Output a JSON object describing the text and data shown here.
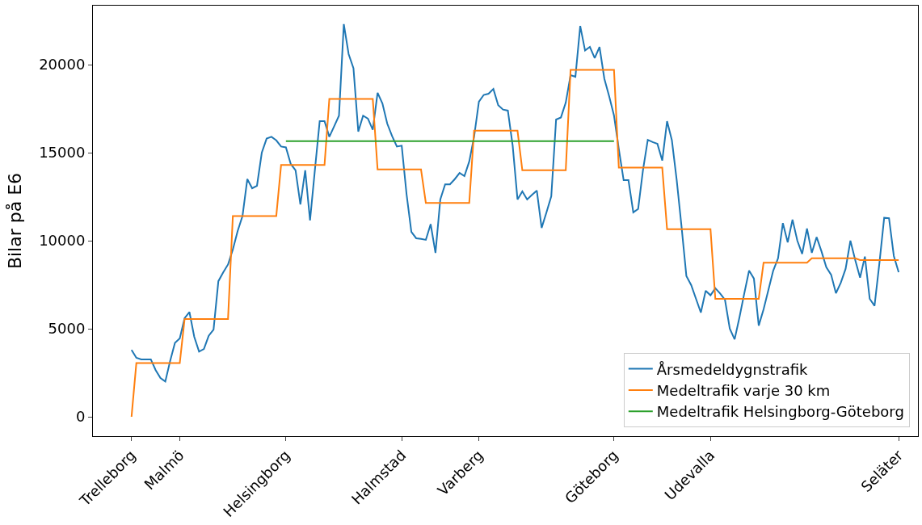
{
  "chart_data": {
    "type": "line",
    "ylabel": "Bilar på E6",
    "ylim": [
      -1100,
      23350
    ],
    "yticks": [
      0,
      5000,
      10000,
      15000,
      20000
    ],
    "categories": [
      "Trelleborg",
      null,
      null,
      null,
      null,
      null,
      null,
      null,
      null,
      null,
      "Malmö",
      null,
      null,
      null,
      null,
      null,
      null,
      null,
      null,
      null,
      null,
      null,
      null,
      null,
      null,
      null,
      null,
      null,
      null,
      null,
      null,
      null,
      "Helsingborg",
      null,
      null,
      null,
      null,
      null,
      null,
      null,
      null,
      null,
      null,
      null,
      null,
      null,
      null,
      null,
      null,
      null,
      null,
      null,
      null,
      null,
      null,
      null,
      "Halmstad",
      null,
      null,
      null,
      null,
      null,
      null,
      null,
      null,
      null,
      null,
      null,
      null,
      null,
      null,
      null,
      "Varberg",
      null,
      null,
      null,
      null,
      null,
      null,
      null,
      null,
      null,
      null,
      null,
      null,
      null,
      null,
      null,
      null,
      null,
      null,
      null,
      null,
      null,
      null,
      null,
      null,
      null,
      null,
      null,
      "Göteborg",
      null,
      null,
      null,
      null,
      null,
      null,
      null,
      null,
      null,
      null,
      null,
      null,
      null,
      null,
      null,
      null,
      null,
      null,
      null,
      "Udevalla",
      null,
      null,
      null,
      null,
      null,
      null,
      null,
      null,
      null,
      null,
      null,
      null,
      null,
      null,
      null,
      null,
      null,
      null,
      null,
      null,
      null,
      null,
      null,
      null,
      null,
      null,
      null,
      null,
      null,
      null,
      null,
      null,
      null,
      null,
      null,
      null,
      null,
      null,
      "Seläter"
    ],
    "legend": "bottom right",
    "series": [
      {
        "name": "Årsmedeldygnstrafik",
        "color": "#1f77b4",
        "values": [
          3800,
          3350,
          3260,
          3260,
          3260,
          2650,
          2200,
          2000,
          3170,
          4200,
          4450,
          5600,
          5950,
          4540,
          3700,
          3850,
          4600,
          4950,
          7700,
          8200,
          8650,
          9500,
          10550,
          11400,
          13500,
          12980,
          13120,
          15000,
          15800,
          15900,
          15700,
          15350,
          15300,
          14360,
          14000,
          12060,
          14000,
          11150,
          14000,
          16790,
          16790,
          15900,
          16500,
          17100,
          22300,
          20600,
          19800,
          16200,
          17100,
          16930,
          16300,
          18400,
          17800,
          16650,
          15950,
          15350,
          15400,
          12650,
          10500,
          10140,
          10100,
          10050,
          10940,
          9310,
          12340,
          13200,
          13200,
          13500,
          13850,
          13670,
          14500,
          15900,
          17900,
          18280,
          18350,
          18620,
          17700,
          17450,
          17390,
          15400,
          12340,
          12800,
          12340,
          12600,
          12850,
          10730,
          11610,
          12520,
          16880,
          17000,
          17840,
          19400,
          19310,
          22200,
          20800,
          21010,
          20370,
          21000,
          19200,
          18200,
          17110,
          15200,
          13440,
          13440,
          11610,
          11800,
          14000,
          15730,
          15600,
          15500,
          14550,
          16790,
          15700,
          13440,
          10800,
          8000,
          7480,
          6700,
          5920,
          7160,
          6900,
          7300,
          7000,
          6650,
          5000,
          4400,
          5640,
          7000,
          8300,
          7850,
          5180,
          6100,
          7200,
          8300,
          9000,
          11000,
          9910,
          11200,
          10000,
          9250,
          10690,
          9310,
          10200,
          9400,
          8500,
          8070,
          7020,
          7610,
          8400,
          10000,
          8900,
          7900,
          9100,
          6700,
          6300,
          8700,
          11300,
          11280,
          9130,
          8210
        ]
      },
      {
        "name": "Medeltrafik varje 30 km",
        "color": "#ff7f0e",
        "values": [
          0,
          3050,
          3050,
          3050,
          3050,
          3050,
          3050,
          3050,
          3050,
          3050,
          3050,
          5550,
          5550,
          5550,
          5550,
          5550,
          5550,
          5550,
          5550,
          5550,
          5550,
          11400,
          11400,
          11400,
          11400,
          11400,
          11400,
          11400,
          11400,
          11400,
          11400,
          14300,
          14300,
          14300,
          14300,
          14300,
          14300,
          14300,
          14300,
          14300,
          14300,
          18050,
          18050,
          18050,
          18050,
          18050,
          18050,
          18050,
          18050,
          18050,
          18050,
          14050,
          14050,
          14050,
          14050,
          14050,
          14050,
          14050,
          14050,
          14050,
          14050,
          12150,
          12150,
          12150,
          12150,
          12150,
          12150,
          12150,
          12150,
          12150,
          12150,
          16250,
          16250,
          16250,
          16250,
          16250,
          16250,
          16250,
          16250,
          16250,
          16250,
          14000,
          14000,
          14000,
          14000,
          14000,
          14000,
          14000,
          14000,
          14000,
          14000,
          19700,
          19700,
          19700,
          19700,
          19700,
          19700,
          19700,
          19700,
          19700,
          19700,
          14150,
          14150,
          14150,
          14150,
          14150,
          14150,
          14150,
          14150,
          14150,
          14150,
          10650,
          10650,
          10650,
          10650,
          10650,
          10650,
          10650,
          10650,
          10650,
          10650,
          6700,
          6700,
          6700,
          6700,
          6700,
          6700,
          6700,
          6700,
          6700,
          6700,
          8750,
          8750,
          8750,
          8750,
          8750,
          8750,
          8750,
          8750,
          8750,
          8750,
          9000,
          9000,
          9000,
          9000,
          9000,
          9000,
          9000,
          9000,
          9000,
          9000,
          8900,
          8900,
          8900,
          8900,
          8900,
          8900,
          8900,
          8900,
          8900
        ]
      },
      {
        "name": "Medeltrafik Helsingborg-Göteborg",
        "color": "#2ca02c",
        "values": [
          null,
          null,
          null,
          null,
          null,
          null,
          null,
          null,
          null,
          null,
          null,
          null,
          null,
          null,
          null,
          null,
          null,
          null,
          null,
          null,
          null,
          null,
          null,
          null,
          null,
          null,
          null,
          null,
          null,
          null,
          null,
          null,
          15650,
          15650,
          15650,
          15650,
          15650,
          15650,
          15650,
          15650,
          15650,
          15650,
          15650,
          15650,
          15650,
          15650,
          15650,
          15650,
          15650,
          15650,
          15650,
          15650,
          15650,
          15650,
          15650,
          15650,
          15650,
          15650,
          15650,
          15650,
          15650,
          15650,
          15650,
          15650,
          15650,
          15650,
          15650,
          15650,
          15650,
          15650,
          15650,
          15650,
          15650,
          15650,
          15650,
          15650,
          15650,
          15650,
          15650,
          15650,
          15650,
          15650,
          15650,
          15650,
          15650,
          15650,
          15650,
          15650,
          15650,
          15650,
          15650,
          15650,
          15650,
          15650,
          15650,
          15650,
          15650,
          15650,
          15650,
          15650,
          15650,
          null,
          null,
          null,
          null,
          null,
          null,
          null,
          null,
          null,
          null,
          null,
          null,
          null,
          null,
          null,
          null,
          null,
          null,
          null,
          null,
          null,
          null,
          null,
          null,
          null,
          null,
          null,
          null,
          null,
          null,
          null,
          null,
          null,
          null,
          null,
          null,
          null,
          null,
          null,
          null,
          null,
          null,
          null,
          null,
          null,
          null,
          null,
          null,
          null,
          null,
          null,
          null,
          null,
          null,
          null,
          null,
          null,
          null,
          null
        ]
      }
    ]
  }
}
